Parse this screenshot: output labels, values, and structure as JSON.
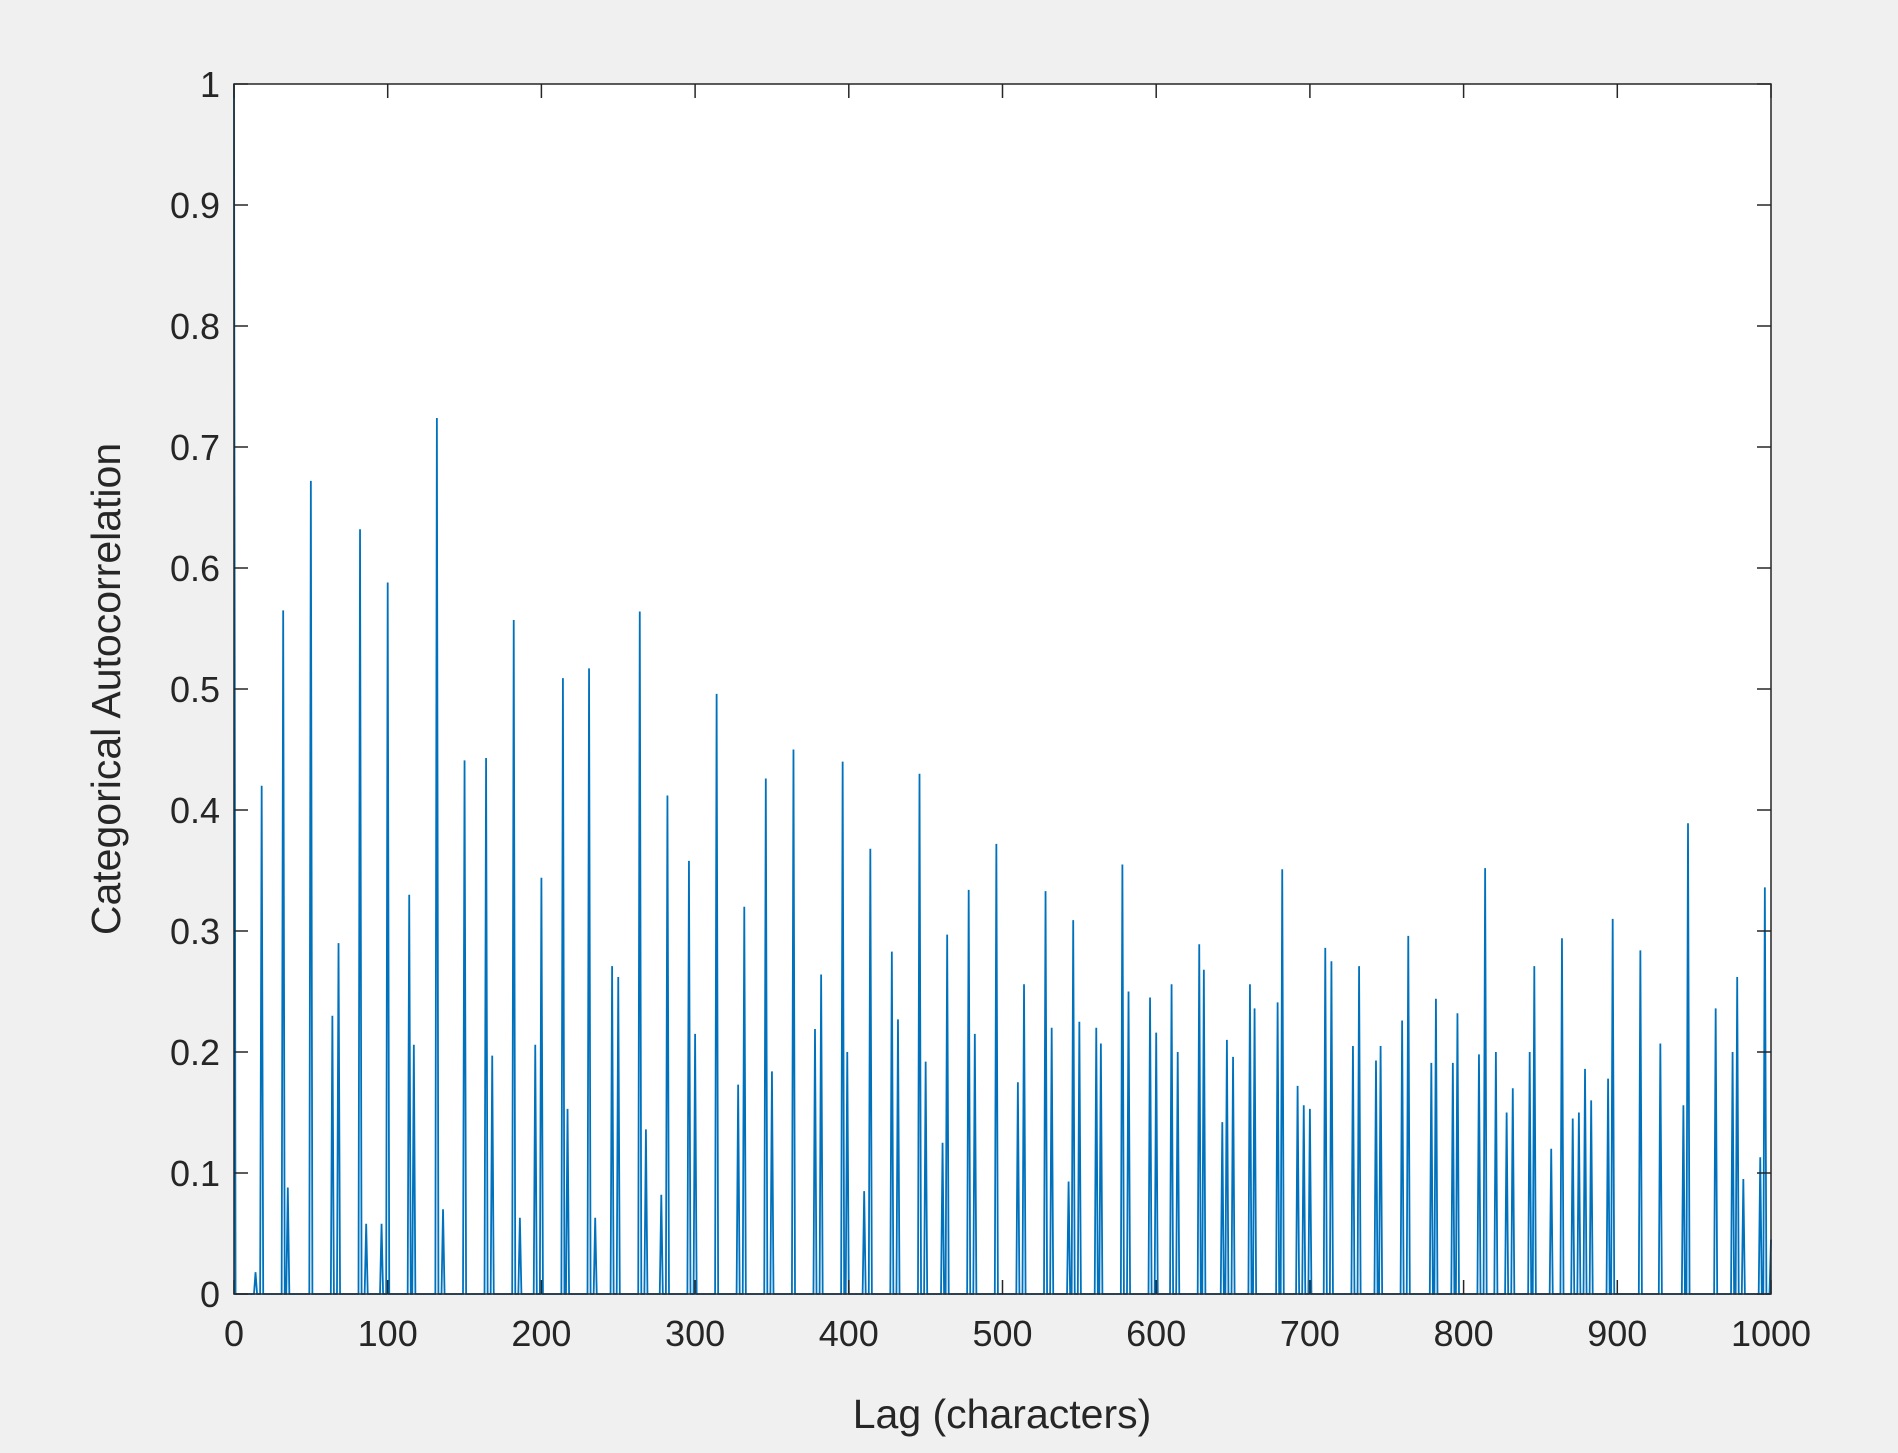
{
  "chart_data": {
    "type": "line",
    "xlabel": "Lag (characters)",
    "ylabel": "Categorical Autocorrelation",
    "color": "#0072bd",
    "xlim": [
      0,
      1000
    ],
    "xticks": [
      0,
      100,
      200,
      300,
      400,
      500,
      600,
      700,
      800,
      900,
      1000
    ],
    "ylim": [
      0,
      1
    ],
    "yticks": [
      0,
      0.1,
      0.2,
      0.3,
      0.4,
      0.5,
      0.6,
      0.7,
      0.8,
      0.9,
      1
    ],
    "grid": false,
    "box": true,
    "x": [
      0,
      1,
      13,
      14,
      15,
      17,
      18,
      19,
      31,
      32,
      33,
      34,
      35,
      36,
      49,
      50,
      51,
      63,
      64,
      65,
      67,
      68,
      69,
      81,
      82,
      83,
      85,
      86,
      87,
      95,
      96,
      97,
      99,
      100,
      101,
      113,
      114,
      115,
      116,
      117,
      118,
      131,
      132,
      133,
      135,
      136,
      137,
      149,
      150,
      151,
      163,
      164,
      165,
      167,
      168,
      169,
      181,
      182,
      183,
      185,
      186,
      187,
      195,
      196,
      197,
      199,
      200,
      201,
      213,
      214,
      215,
      216,
      217,
      218,
      230,
      231,
      232,
      234,
      235,
      236,
      245,
      246,
      247,
      249,
      250,
      251,
      263,
      264,
      265,
      267,
      268,
      269,
      277,
      278,
      279,
      281,
      282,
      283,
      295,
      296,
      297,
      299,
      300,
      301,
      313,
      314,
      315,
      327,
      328,
      329,
      331,
      332,
      333,
      345,
      346,
      347,
      349,
      350,
      351,
      363,
      364,
      365,
      377,
      378,
      379,
      381,
      382,
      383,
      395,
      396,
      397,
      398,
      399,
      400,
      409,
      410,
      411,
      413,
      414,
      415,
      427,
      428,
      429,
      431,
      432,
      433,
      445,
      446,
      447,
      449,
      450,
      451,
      460,
      461,
      462,
      463,
      464,
      465,
      477,
      478,
      479,
      481,
      482,
      483,
      495,
      496,
      497,
      509,
      510,
      511,
      513,
      514,
      515,
      527,
      528,
      529,
      531,
      532,
      533,
      542,
      543,
      544,
      545,
      546,
      547,
      549,
      550,
      551,
      560,
      561,
      562,
      563,
      564,
      565,
      577,
      578,
      579,
      581,
      582,
      583,
      595,
      596,
      597,
      599,
      600,
      601,
      609,
      610,
      611,
      613,
      614,
      615,
      627,
      628,
      629,
      630,
      631,
      632,
      642,
      643,
      644,
      645,
      646,
      647,
      649,
      650,
      651,
      660,
      661,
      662,
      663,
      664,
      665,
      678,
      679,
      680,
      681,
      682,
      683,
      691,
      692,
      693,
      695,
      696,
      697,
      699,
      700,
      701,
      709,
      710,
      711,
      713,
      714,
      715,
      727,
      728,
      729,
      731,
      732,
      733,
      742,
      743,
      744,
      745,
      746,
      747,
      759,
      760,
      761,
      763,
      764,
      765,
      778,
      779,
      780,
      781,
      782,
      783,
      792,
      793,
      794,
      795,
      796,
      797,
      809,
      810,
      811,
      813,
      814,
      815,
      820,
      821,
      822,
      827,
      828,
      829,
      831,
      832,
      833,
      842,
      843,
      844,
      845,
      846,
      847,
      856,
      857,
      858,
      863,
      864,
      865,
      870,
      871,
      872,
      874,
      875,
      876,
      878,
      879,
      880,
      882,
      883,
      884,
      893,
      894,
      895,
      896,
      897,
      898,
      914,
      915,
      916,
      927,
      928,
      929,
      942,
      943,
      944,
      945,
      946,
      947,
      963,
      964,
      965,
      974,
      975,
      976,
      977,
      978,
      979,
      981,
      982,
      983,
      992,
      993,
      994,
      995,
      996,
      997,
      999,
      1000
    ],
    "values": [
      1,
      0,
      0,
      0.018,
      0,
      0,
      0.42,
      0,
      0,
      0.565,
      0,
      0,
      0.088,
      0,
      0,
      0.672,
      0,
      0,
      0.23,
      0,
      0,
      0.29,
      0,
      0,
      0.632,
      0,
      0,
      0.058,
      0,
      0,
      0.058,
      0,
      0,
      0.588,
      0,
      0,
      0.33,
      0,
      0,
      0.206,
      0,
      0,
      0.724,
      0,
      0,
      0.07,
      0,
      0,
      0.441,
      0,
      0,
      0.443,
      0,
      0,
      0.197,
      0,
      0,
      0.557,
      0,
      0,
      0.063,
      0,
      0,
      0.206,
      0,
      0,
      0.344,
      0,
      0,
      0.509,
      0,
      0,
      0.153,
      0,
      0,
      0.517,
      0,
      0,
      0.063,
      0,
      0,
      0.271,
      0,
      0,
      0.262,
      0,
      0,
      0.564,
      0,
      0,
      0.136,
      0,
      0,
      0.082,
      0,
      0,
      0.412,
      0,
      0,
      0.358,
      0,
      0,
      0.215,
      0,
      0,
      0.496,
      0,
      0,
      0.173,
      0,
      0,
      0.32,
      0,
      0,
      0.426,
      0,
      0,
      0.184,
      0,
      0,
      0.45,
      0,
      0,
      0.219,
      0,
      0,
      0.264,
      0,
      0,
      0.44,
      0,
      0,
      0.2,
      0,
      0,
      0.085,
      0,
      0,
      0.368,
      0,
      0,
      0.283,
      0,
      0,
      0.227,
      0,
      0,
      0.43,
      0,
      0,
      0.192,
      0,
      0,
      0.125,
      0,
      0,
      0.297,
      0,
      0,
      0.334,
      0,
      0,
      0.215,
      0,
      0,
      0.372,
      0,
      0,
      0.175,
      0,
      0,
      0.256,
      0,
      0,
      0.333,
      0,
      0,
      0.22,
      0,
      0,
      0.093,
      0,
      0,
      0.309,
      0,
      0,
      0.225,
      0,
      0,
      0.22,
      0,
      0,
      0.207,
      0,
      0,
      0.355,
      0,
      0,
      0.25,
      0,
      0,
      0.245,
      0,
      0,
      0.216,
      0,
      0,
      0.256,
      0,
      0,
      0.2,
      0,
      0,
      0.289,
      0,
      0,
      0.268,
      0,
      0,
      0.142,
      0,
      0,
      0.21,
      0,
      0,
      0.196,
      0,
      0,
      0.256,
      0,
      0,
      0.236,
      0,
      0,
      0.241,
      0,
      0,
      0.351,
      0,
      0,
      0.172,
      0,
      0,
      0.156,
      0,
      0,
      0.153,
      0,
      0,
      0.286,
      0,
      0,
      0.275,
      0,
      0,
      0.205,
      0,
      0,
      0.271,
      0,
      0,
      0.193,
      0,
      0,
      0.205,
      0,
      0,
      0.226,
      0,
      0,
      0.296,
      0,
      0,
      0.191,
      0,
      0,
      0.244,
      0,
      0,
      0.191,
      0,
      0,
      0.232,
      0,
      0,
      0.198,
      0,
      0,
      0.352,
      0,
      0,
      0.2,
      0,
      0,
      0.15,
      0,
      0,
      0.17,
      0,
      0,
      0.2,
      0,
      0,
      0.271,
      0,
      0,
      0.12,
      0,
      0,
      0.294,
      0,
      0,
      0.145,
      0,
      0,
      0.15,
      0,
      0,
      0.186,
      0,
      0,
      0.16,
      0,
      0,
      0.178,
      0,
      0,
      0.31,
      0,
      0,
      0.284,
      0,
      0,
      0.207,
      0,
      0,
      0.156,
      0,
      0,
      0.389,
      0,
      0,
      0.236,
      0,
      0,
      0.2,
      0,
      0,
      0.262,
      0,
      0,
      0.095,
      0,
      0,
      0.113,
      0,
      0,
      0.336,
      0,
      0,
      0.045
    ]
  }
}
